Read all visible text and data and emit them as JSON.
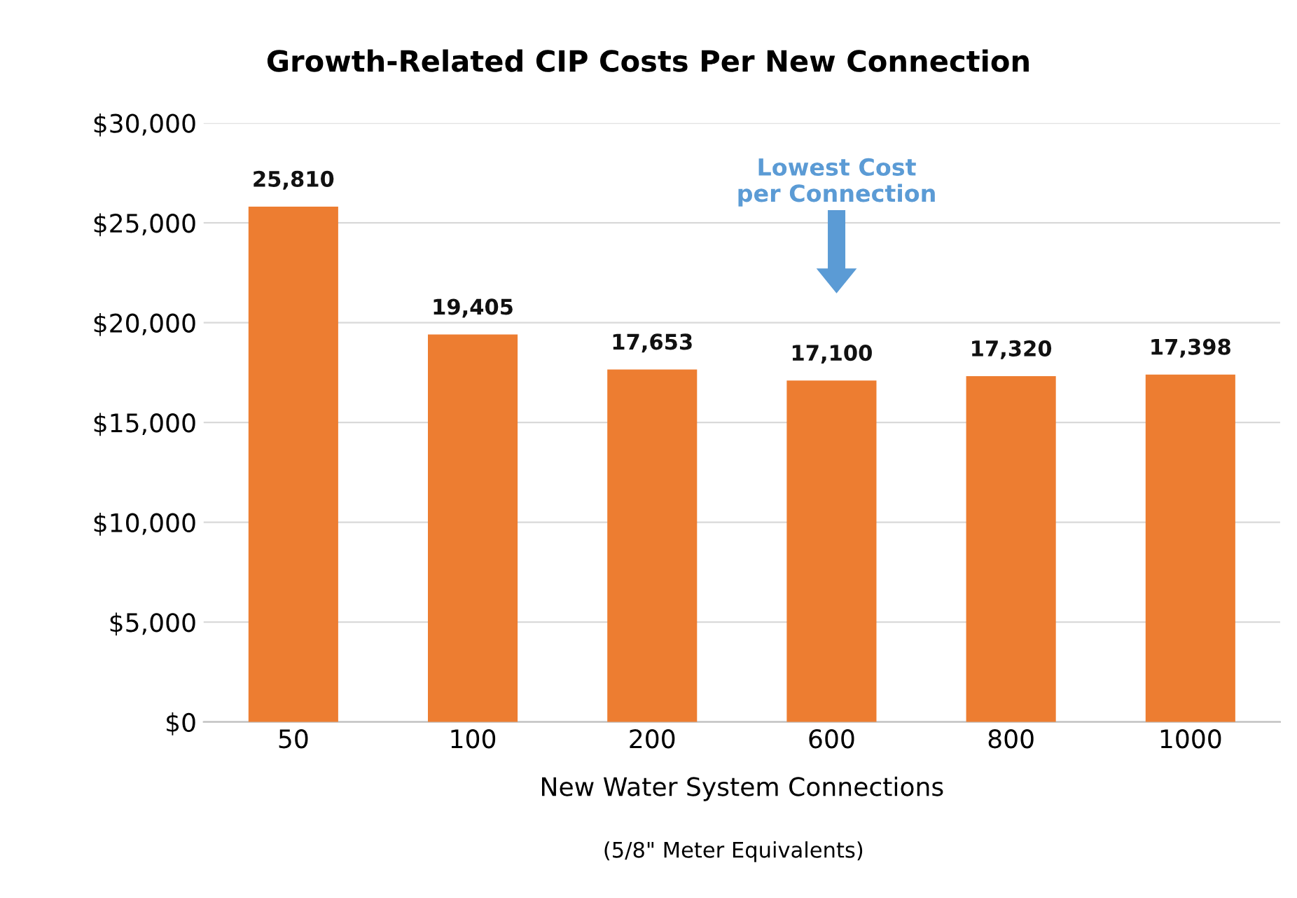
{
  "chart_data": {
    "type": "bar",
    "title": "Growth-Related CIP Costs Per New Connection",
    "xlabel": "New Water System Connections",
    "categories": [
      "50",
      "100",
      "200",
      "600",
      "800",
      "1000"
    ],
    "values": [
      25810,
      19405,
      17653,
      17100,
      17320,
      17398
    ],
    "value_labels": [
      "25,810",
      "19,405",
      "17,653",
      "17,100",
      "17,320",
      "17,398"
    ],
    "color": "#ed7d31",
    "ylim": [
      0,
      30000
    ],
    "yticks": [
      {
        "value": 0,
        "label": "$0"
      },
      {
        "value": 5000,
        "label": "$5,000"
      },
      {
        "value": 10000,
        "label": "$10,000"
      },
      {
        "value": 15000,
        "label": "$15,000"
      },
      {
        "value": 20000,
        "label": "$20,000"
      },
      {
        "value": 25000,
        "label": "$25,000"
      },
      {
        "value": 30000,
        "label": "$30,000"
      }
    ],
    "grid": "y",
    "annotations": [
      "Lowest Cost\nper Connection",
      "(5/8\" Meter Equivalents)"
    ]
  }
}
